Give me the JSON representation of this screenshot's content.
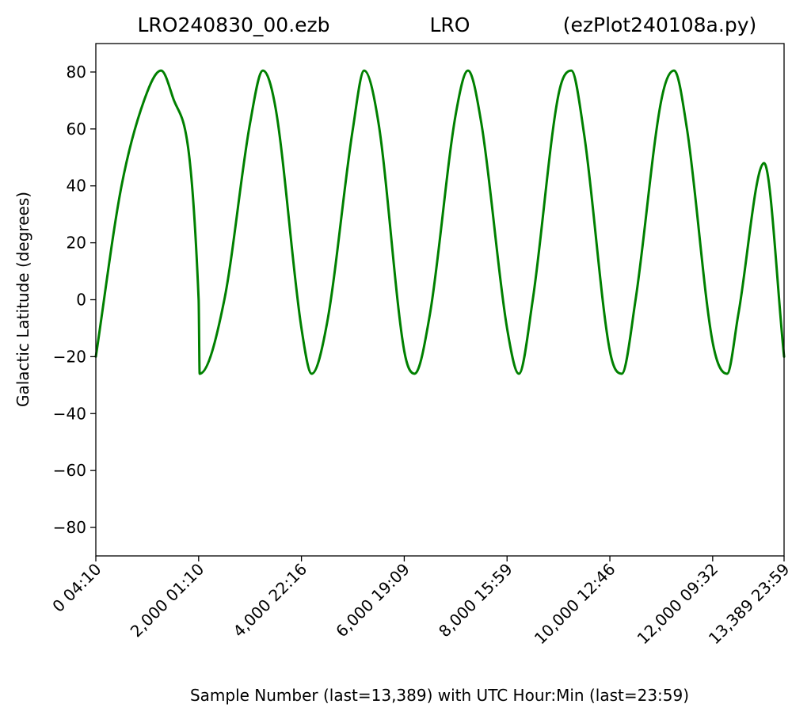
{
  "header": {
    "file_title": "LRO240830_00.ezb",
    "station_title": "LRO",
    "script_title": "(ezPlot240108a.py)"
  },
  "chart_data": {
    "type": "line",
    "title_left": "LRO240830_00.ezb",
    "title_center": "LRO",
    "title_right": "(ezPlot240108a.py)",
    "xlabel": "Sample Number (last=13,389) with UTC Hour:Min (last=23:59)",
    "ylabel": "Galactic Latitude (degrees)",
    "xlim": [
      0,
      13389
    ],
    "ylim": [
      -90,
      90
    ],
    "x_ticks": [
      {
        "value": 0,
        "label": "0  04:10"
      },
      {
        "value": 2000,
        "label": "2,000  01:10"
      },
      {
        "value": 4000,
        "label": "4,000  22:16"
      },
      {
        "value": 6000,
        "label": "6,000  19:09"
      },
      {
        "value": 8000,
        "label": "8,000  15:59"
      },
      {
        "value": 10000,
        "label": "10,000  12:46"
      },
      {
        "value": 12000,
        "label": "12,000  09:32"
      },
      {
        "value": 13389,
        "label": "13,389  23:59"
      }
    ],
    "y_ticks": [
      {
        "value": 80,
        "label": "80"
      },
      {
        "value": 60,
        "label": "60"
      },
      {
        "value": 40,
        "label": "40"
      },
      {
        "value": 20,
        "label": "20"
      },
      {
        "value": 0,
        "label": "0"
      },
      {
        "value": -20,
        "label": "−20"
      },
      {
        "value": -40,
        "label": "−40"
      },
      {
        "value": -60,
        "label": "−60"
      },
      {
        "value": -80,
        "label": "−80"
      }
    ],
    "grid": false,
    "series": [
      {
        "color": "#008000",
        "x": [
          0,
          500,
          1000,
          1270,
          1500,
          2000,
          2020,
          2500,
          3000,
          3250,
          3500,
          4000,
          4200,
          4500,
          5000,
          5220,
          5500,
          6000,
          6200,
          6500,
          7000,
          7240,
          7500,
          8000,
          8230,
          8500,
          9000,
          9250,
          9500,
          10000,
          10230,
          10500,
          11000,
          11250,
          11500,
          12000,
          12280,
          12500,
          13000,
          13389
        ],
        "y": [
          -20,
          40,
          73,
          80.5,
          71,
          0,
          -26,
          0,
          62,
          80.5,
          67,
          -10,
          -26,
          -8,
          60,
          80.5,
          62,
          -18,
          -26,
          -5,
          65,
          80.5,
          62,
          -10,
          -26,
          0,
          72,
          80.5,
          58,
          -18,
          -26,
          0,
          70,
          80.5,
          60,
          -15,
          -26,
          -5,
          48,
          -20
        ]
      }
    ]
  }
}
